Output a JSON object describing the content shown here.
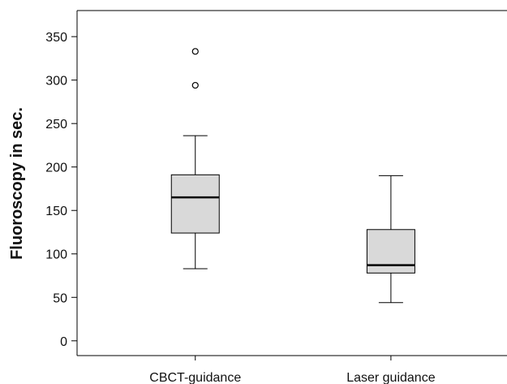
{
  "chart_data": {
    "type": "box",
    "title": "",
    "xlabel": "",
    "ylabel": "Fluoroscopy in sec.",
    "ylim": [
      -17,
      380
    ],
    "yticks": [
      0,
      50,
      100,
      150,
      200,
      250,
      300,
      350
    ],
    "grid": false,
    "categories": [
      "CBCT-guidance",
      "Laser guidance"
    ],
    "boxes": [
      {
        "category": "CBCT-guidance",
        "whisker_low": 83,
        "q1": 124,
        "median": 165,
        "q3": 191,
        "whisker_high": 236,
        "outliers": [
          294,
          333
        ]
      },
      {
        "category": "Laser guidance",
        "whisker_low": 44,
        "q1": 78,
        "median": 87,
        "q3": 128,
        "whisker_high": 190,
        "outliers": []
      }
    ],
    "box_fill": "#d9d9d9",
    "line_color": "#000000"
  }
}
